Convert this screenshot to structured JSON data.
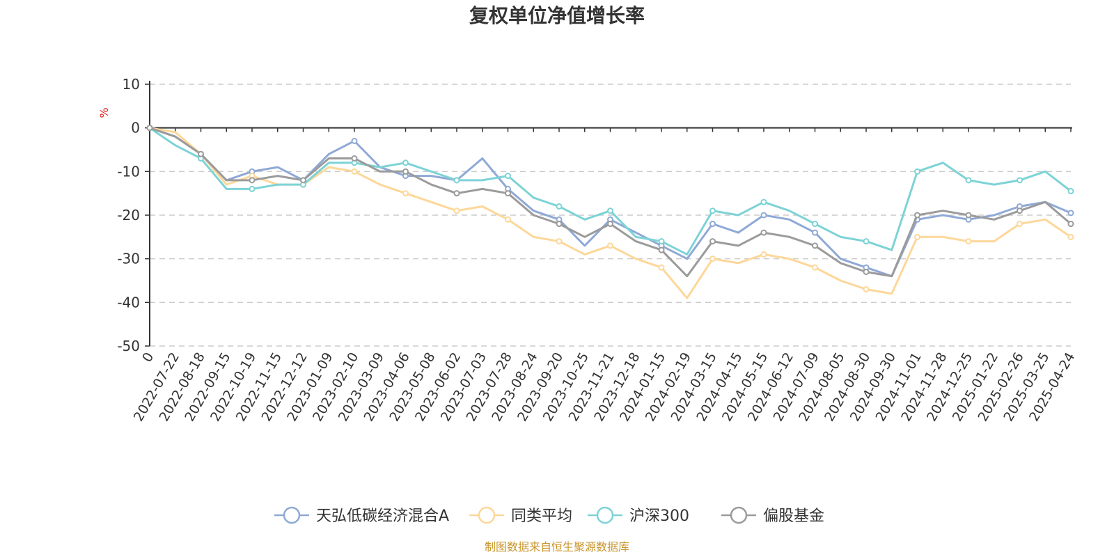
{
  "chart_data": {
    "type": "line",
    "title": "复权单位净值增长率",
    "ylabel": "%",
    "ylim": [
      -50,
      10
    ],
    "yticks": [
      10,
      0,
      -10,
      -20,
      -30,
      -40,
      -50
    ],
    "grid": "dashed horizontal",
    "legend_position": "bottom-center",
    "source": "制图数据来自恒生聚源数据库",
    "x_tick_labels": [
      "0",
      "2022-07-22",
      "2022-08-18",
      "2022-09-15",
      "2022-10-19",
      "2022-11-15",
      "2022-12-12",
      "2023-01-09",
      "2023-02-10",
      "2023-03-09",
      "2023-04-06",
      "2023-05-08",
      "2023-06-02",
      "2023-07-03",
      "2023-07-28",
      "2023-08-24",
      "2023-09-20",
      "2023-10-25",
      "2023-11-21",
      "2023-12-18",
      "2024-01-15",
      "2024-02-19",
      "2024-03-15",
      "2024-04-15",
      "2024-05-15",
      "2024-06-12",
      "2024-07-09",
      "2024-08-05",
      "2024-08-30",
      "2024-09-30",
      "2024-11-01",
      "2024-11-28",
      "2024-12-25",
      "2025-01-22",
      "2025-02-26",
      "2025-03-25",
      "2025-04-24"
    ],
    "series": [
      {
        "name": "天弘低碳经济混合A",
        "color": "#8fa9d6",
        "values": [
          0,
          -2,
          -6,
          -12,
          -10,
          -9,
          -12,
          -6,
          -3,
          -9,
          -11,
          -11,
          -12,
          -7,
          -14,
          -19,
          -21,
          -27,
          -21,
          -24,
          -27,
          -30,
          -22,
          -24,
          -20,
          -21,
          -24,
          -30,
          -32,
          -34,
          -21,
          -20,
          -21,
          -20,
          -18,
          -17,
          -19.5
        ]
      },
      {
        "name": "同类平均",
        "color": "#fdd799",
        "values": [
          0,
          -1,
          -6,
          -13,
          -11,
          -13,
          -13,
          -9,
          -10,
          -13,
          -15,
          -17,
          -19,
          -18,
          -21,
          -25,
          -26,
          -29,
          -27,
          -30,
          -32,
          -39,
          -30,
          -31,
          -29,
          -30,
          -32,
          -35,
          -37,
          -38,
          -25,
          -25,
          -26,
          -26,
          -22,
          -21,
          -25
        ]
      },
      {
        "name": "沪深300",
        "color": "#7dd3d6",
        "values": [
          0,
          -4,
          -7,
          -14,
          -14,
          -13,
          -13,
          -8,
          -8,
          -9,
          -8,
          -10,
          -12,
          -12,
          -11,
          -16,
          -18,
          -21,
          -19,
          -25,
          -26,
          -29,
          -19,
          -20,
          -17,
          -19,
          -22,
          -25,
          -26,
          -28,
          -10,
          -8,
          -12,
          -13,
          -12,
          -10,
          -14.5
        ]
      },
      {
        "name": "偏股基金",
        "color": "#9b9b9b",
        "values": [
          0,
          -2,
          -6,
          -12,
          -12,
          -11,
          -12,
          -7,
          -7,
          -10,
          -10,
          -13,
          -15,
          -14,
          -15,
          -20,
          -22,
          -25,
          -22,
          -26,
          -28,
          -34,
          -26,
          -27,
          -24,
          -25,
          -27,
          -31,
          -33,
          -34,
          -20,
          -19,
          -20,
          -21,
          -19,
          -17,
          -22
        ]
      }
    ]
  }
}
